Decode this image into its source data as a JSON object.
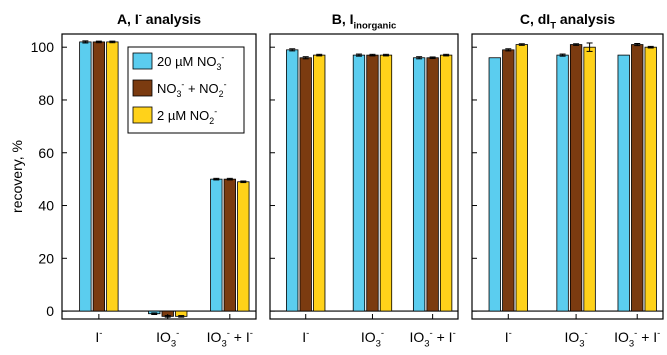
{
  "colors": {
    "cyan": "#5bcdef",
    "brown": "#7b3b10",
    "yellow": "#ffd21a",
    "axis": "#000000",
    "grid": "#ffffff"
  },
  "chart_data": [
    {
      "type": "bar",
      "title": "A, I⁻ analysis",
      "title_parts": [
        {
          "t": "A, I"
        },
        {
          "t": "-",
          "sup": true
        },
        {
          "t": " analysis"
        }
      ],
      "ylabel": "recovery, %",
      "ylim": [
        -3,
        105
      ],
      "yticks": [
        0,
        20,
        40,
        60,
        80,
        100
      ],
      "categories": [
        "I⁻",
        "IO₃⁻",
        "IO₃⁻ + I⁻"
      ],
      "series": [
        {
          "name": "20 µM NO₃⁻",
          "color_key": "cyan",
          "values": [
            102,
            -1,
            50
          ],
          "errors": [
            0.4,
            0.3,
            0.3
          ]
        },
        {
          "name": "NO₃⁻ + NO₂⁻",
          "color_key": "brown",
          "values": [
            102,
            -2,
            50
          ],
          "errors": [
            0.3,
            0.3,
            0.3
          ]
        },
        {
          "name": "2 µM NO₂⁻",
          "color_key": "yellow",
          "values": [
            102,
            -2,
            49
          ],
          "errors": [
            0.3,
            0.3,
            0.3
          ]
        }
      ],
      "legend": "top-right"
    },
    {
      "type": "bar",
      "title": "B, I inorganic",
      "title_parts": [
        {
          "t": "B, I"
        },
        {
          "t": "inorganic",
          "sub": true
        }
      ],
      "ylim": [
        -3,
        105
      ],
      "categories": [
        "I⁻",
        "IO₃⁻",
        "IO₃⁻ + I⁻"
      ],
      "series": [
        {
          "name": "20 µM NO₃⁻",
          "color_key": "cyan",
          "values": [
            99,
            97,
            96
          ],
          "errors": [
            0.4,
            0.4,
            0.4
          ]
        },
        {
          "name": "NO₃⁻ + NO₂⁻",
          "color_key": "brown",
          "values": [
            96,
            97,
            96
          ],
          "errors": [
            0.4,
            0.3,
            0.3
          ]
        },
        {
          "name": "2 µM NO₂⁻",
          "color_key": "yellow",
          "values": [
            97,
            97,
            97
          ],
          "errors": [
            0.3,
            0.3,
            0.3
          ]
        }
      ]
    },
    {
      "type": "bar",
      "title": "C, dI T analysis",
      "title_parts": [
        {
          "t": "C, dI"
        },
        {
          "t": "T",
          "sub": true
        },
        {
          "t": " analysis"
        }
      ],
      "ylim": [
        -3,
        105
      ],
      "categories": [
        "I⁻",
        "IO₃⁻",
        "IO₃⁻ + I⁻"
      ],
      "series": [
        {
          "name": "20 µM NO₃⁻",
          "color_key": "cyan",
          "values": [
            96,
            97,
            97
          ],
          "errors": [
            0.0,
            0.4,
            0.0
          ]
        },
        {
          "name": "NO₃⁻ + NO₂⁻",
          "color_key": "brown",
          "values": [
            99,
            101,
            101
          ],
          "errors": [
            0.4,
            0.3,
            0.4
          ]
        },
        {
          "name": "2 µM NO₂⁻",
          "color_key": "yellow",
          "values": [
            101,
            100,
            100
          ],
          "errors": [
            0.3,
            1.6,
            0.3
          ]
        }
      ]
    }
  ],
  "category_label_parts": [
    [
      {
        "t": "I"
      },
      {
        "t": "-",
        "sup": true
      }
    ],
    [
      {
        "t": "IO"
      },
      {
        "t": "3",
        "sub": true
      },
      {
        "t": "-",
        "sup": true
      }
    ],
    [
      {
        "t": "IO"
      },
      {
        "t": "3",
        "sub": true
      },
      {
        "t": "-",
        "sup": true
      },
      {
        "t": " + I"
      },
      {
        "t": "-",
        "sup": true
      }
    ]
  ],
  "legend_label_parts": [
    [
      {
        "t": "20 µM NO"
      },
      {
        "t": "3",
        "sub": true
      },
      {
        "t": "-",
        "sup": true
      }
    ],
    [
      {
        "t": "NO"
      },
      {
        "t": "3",
        "sub": true
      },
      {
        "t": "-",
        "sup": true
      },
      {
        "t": " + NO"
      },
      {
        "t": "2",
        "sub": true
      },
      {
        "t": "-",
        "sup": true
      }
    ],
    [
      {
        "t": "2 µM NO"
      },
      {
        "t": "2",
        "sub": true
      },
      {
        "t": "-",
        "sup": true
      }
    ]
  ]
}
